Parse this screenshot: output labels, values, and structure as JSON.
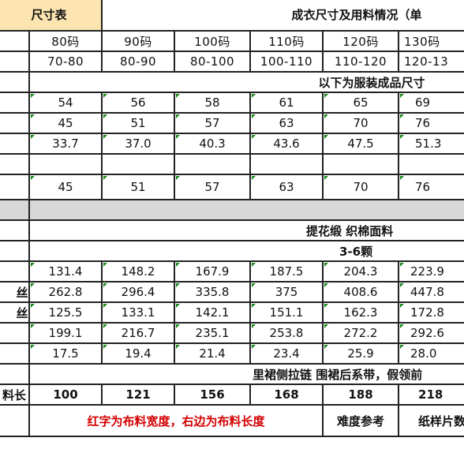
{
  "title_left": "尺寸表",
  "title_right": "成衣尺寸及用料情况（单",
  "sizes": [
    "80码",
    "90码",
    "100码",
    "110码",
    "120码",
    "130码"
  ],
  "heights": [
    "70-80",
    "80-90",
    "80-100",
    "100-110",
    "110-120",
    "120-13"
  ],
  "section_heading": "以下为服装成品尺寸",
  "measure_rows": [
    [
      "54",
      "56",
      "58",
      "61",
      "65",
      "69"
    ],
    [
      "45",
      "51",
      "57",
      "63",
      "70",
      "76"
    ],
    [
      "33.7",
      "37.0",
      "40.3",
      "43.6",
      "47.5",
      "51.3"
    ]
  ],
  "row_after_blank": [
    "45",
    "51",
    "57",
    "63",
    "70",
    "76"
  ],
  "fabric": "提花缎 织棉面料",
  "buttons": "3-6颗",
  "yardage_labels": [
    "",
    "丝",
    "丝",
    "",
    ""
  ],
  "yardage_rows": [
    [
      "131.4",
      "148.2",
      "167.9",
      "187.5",
      "204.3",
      "223.9"
    ],
    [
      "262.8",
      "296.4",
      "335.8",
      "375",
      "408.6",
      "447.8"
    ],
    [
      "125.5",
      "133.1",
      "142.1",
      "151.1",
      "162.3",
      "172.8"
    ],
    [
      "199.1",
      "216.7",
      "235.1",
      "253.8",
      "272.2",
      "292.6"
    ],
    [
      "17.5",
      "19.4",
      "21.4",
      "23.4",
      "25.9",
      "28.0"
    ]
  ],
  "notes": "里裙侧拉链  围裙后系带，假领前",
  "length_label": "料长",
  "length_values": [
    "100",
    "121",
    "156",
    "168",
    "188",
    "218"
  ],
  "footer_red": "红字为布料宽度，右边为布料长度",
  "footer_difficulty": "难度参考",
  "footer_pattern": "纸样片数"
}
